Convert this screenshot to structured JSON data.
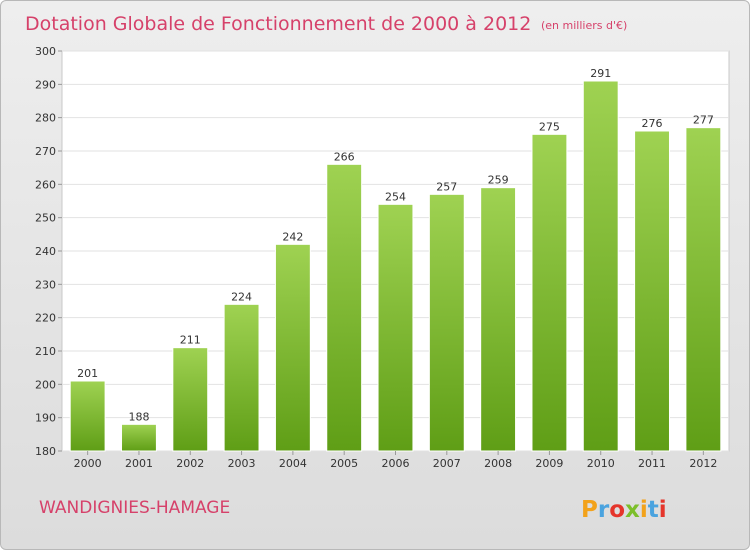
{
  "chart_data": {
    "type": "bar",
    "title": "Dotation Globale de Fonctionnement de 2000 à 2012",
    "subtitle": "(en milliers d'€)",
    "categories": [
      "2000",
      "2001",
      "2002",
      "2003",
      "2004",
      "2005",
      "2006",
      "2007",
      "2008",
      "2009",
      "2010",
      "2011",
      "2012"
    ],
    "values": [
      201,
      188,
      211,
      224,
      242,
      266,
      254,
      257,
      259,
      275,
      291,
      276,
      277
    ],
    "ylim": [
      180,
      300
    ],
    "yticks": [
      180,
      190,
      200,
      210,
      220,
      230,
      240,
      250,
      260,
      270,
      280,
      290,
      300
    ],
    "grid": true,
    "bar_color": "#7cbf2a"
  },
  "footer": {
    "city": "WANDIGNIES-HAMAGE",
    "brand": [
      "P",
      "r",
      "o",
      "x",
      "i",
      "t",
      "i"
    ],
    "brand_colors": [
      "#f2a21b",
      "#4aa3df",
      "#e5352b",
      "#7cbf2a",
      "#f2a21b",
      "#4aa3df",
      "#e5352b"
    ]
  }
}
